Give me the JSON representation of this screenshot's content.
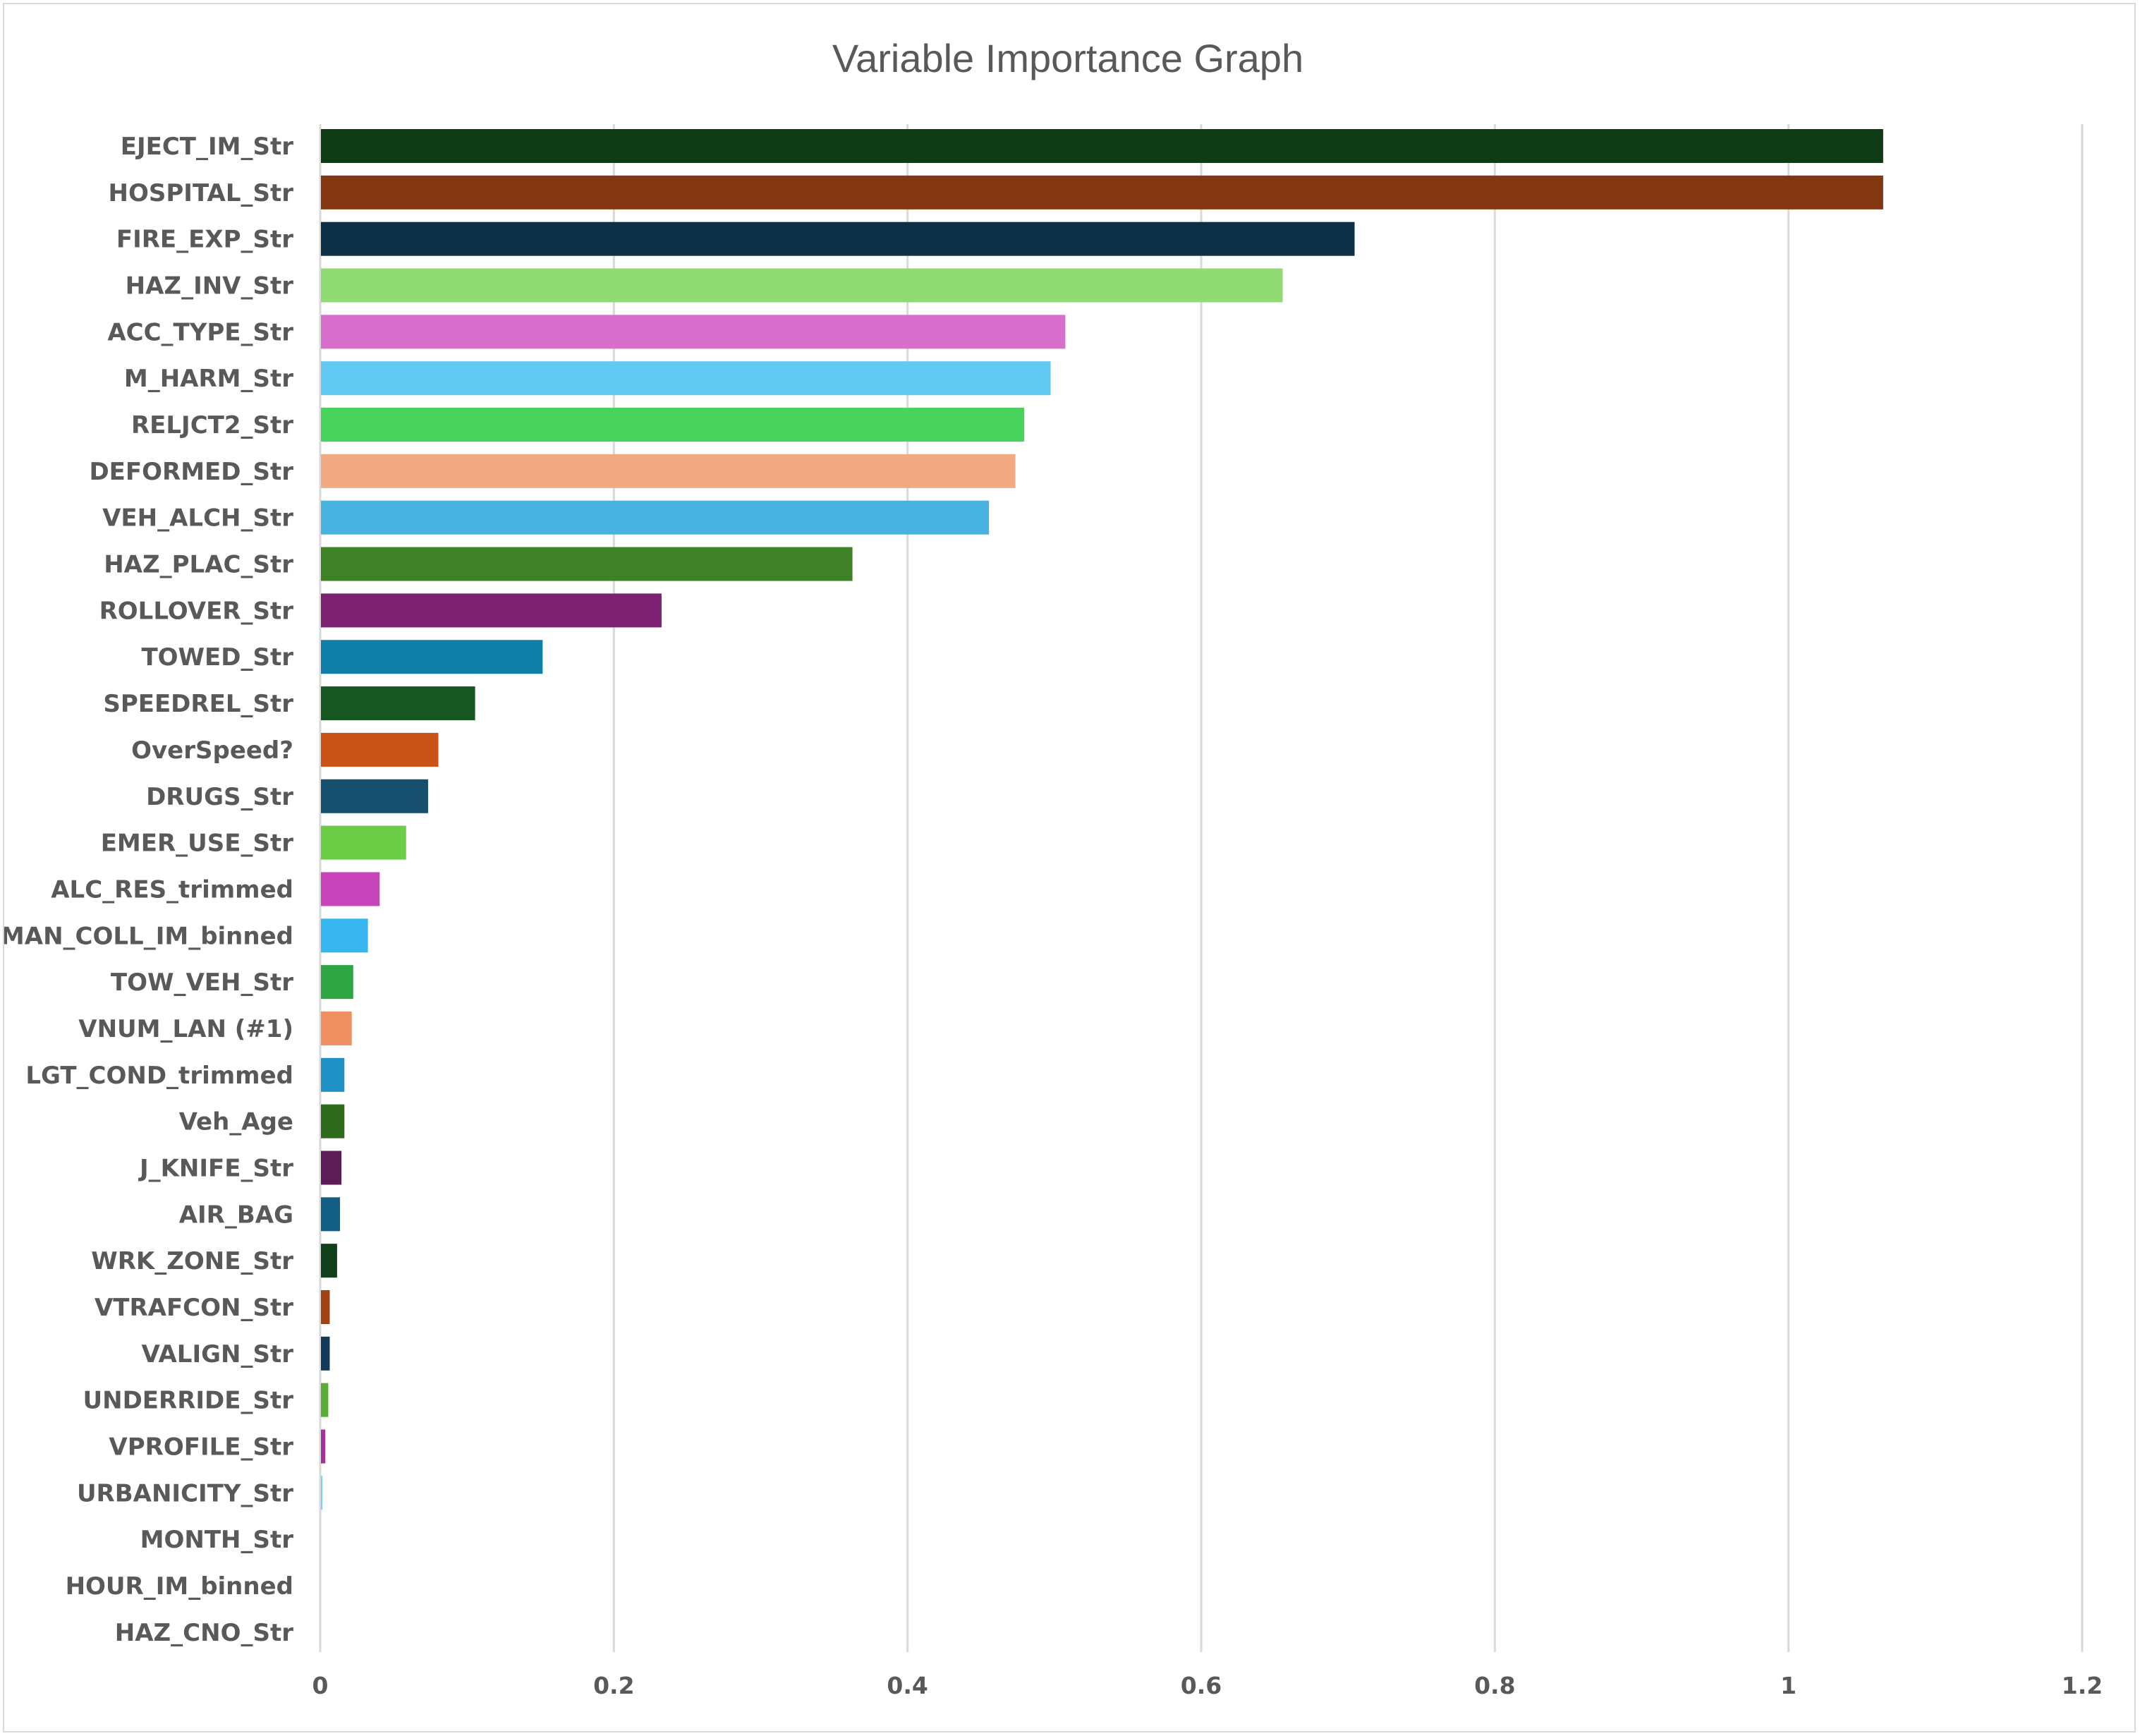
{
  "chart_data": {
    "type": "bar",
    "orientation": "horizontal",
    "title": "Variable Importance Graph",
    "xlabel": "",
    "ylabel": "",
    "xlim": [
      0,
      1.2
    ],
    "x_ticks": [
      "0",
      "0.2",
      "0.4",
      "0.6",
      "0.8",
      "1",
      "1.2"
    ],
    "grid": true,
    "legend": "none",
    "categories": [
      "EJECT_IM_Str",
      "HOSPITAL_Str",
      "FIRE_EXP_Str",
      "HAZ_INV_Str",
      "ACC_TYPE_Str",
      "M_HARM_Str",
      "RELJCT2_Str",
      "DEFORMED_Str",
      "VEH_ALCH_Str",
      "HAZ_PLAC_Str",
      "ROLLOVER_Str",
      "TOWED_Str",
      "SPEEDREL_Str",
      "OverSpeed?",
      "DRUGS_Str",
      "EMER_USE_Str",
      "ALC_RES_trimmed",
      "MAN_COLL_IM_binned",
      "TOW_VEH_Str",
      "VNUM_LAN (#1)",
      "LGT_COND_trimmed",
      "Veh_Age",
      "J_KNIFE_Str",
      "AIR_BAG",
      "WRK_ZONE_Str",
      "VTRAFCON_Str",
      "VALIGN_Str",
      "UNDERRIDE_Str",
      "VPROFILE_Str",
      "URBANICITY_Str",
      "MONTH_Str",
      "HOUR_IM_binned",
      "HAZ_CNO_Str"
    ],
    "values": [
      1.064,
      1.064,
      0.704,
      0.655,
      0.507,
      0.497,
      0.479,
      0.473,
      0.455,
      0.362,
      0.232,
      0.151,
      0.105,
      0.08,
      0.073,
      0.058,
      0.04,
      0.032,
      0.022,
      0.021,
      0.016,
      0.016,
      0.014,
      0.013,
      0.011,
      0.006,
      0.006,
      0.005,
      0.003,
      0.001,
      0.0,
      0.0,
      0.0
    ],
    "bar_colors": [
      "#0e3a14",
      "#843610",
      "#0e3046",
      "#8fdb74",
      "#d86ecb",
      "#61c9f2",
      "#47d35c",
      "#f2aa85",
      "#48b2e1",
      "#3f8127",
      "#7d2270",
      "#0f7ea8",
      "#175822",
      "#ca5318",
      "#16506e",
      "#6bcd45",
      "#c844bb",
      "#36b5ef",
      "#2ea644",
      "#ee9062",
      "#1f91c4",
      "#2f6b1d",
      "#5e1c57",
      "#115f83",
      "#11401b",
      "#a04314",
      "#113b58",
      "#59ad37",
      "#a23397",
      "#7ecdf2",
      "#28943d",
      "#e97b48",
      "#1a7cab"
    ]
  }
}
